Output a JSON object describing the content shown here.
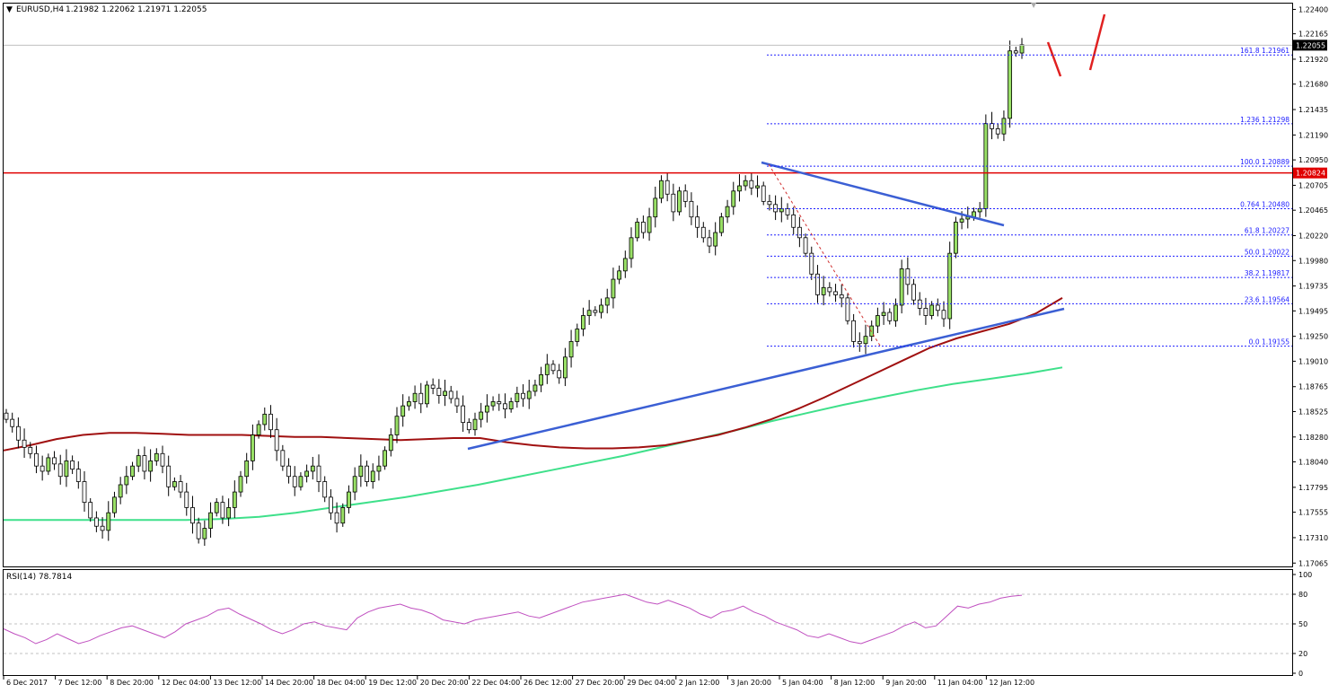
{
  "header": {
    "symbol": "EURUSD,H4",
    "ohlc": "1.21982 1.22062 1.21971 1.22055"
  },
  "rsi_header": {
    "label": "RSI(14) 78.7814"
  },
  "colors": {
    "up_candle": "#99e066",
    "down_candle": "#ffffff",
    "wick": "#000000",
    "resistance": "#e00000",
    "trendline": "#3b5fd4",
    "sma_red": "#a01010",
    "sma_green": "#3ee08a",
    "fib": "#2020ff",
    "rsi": "#c050c0",
    "arrow": "#e02020"
  },
  "chart_data": [
    {
      "type": "line",
      "name": "price",
      "symbol": "EURUSD",
      "timeframe": "H4",
      "y_ticks": [
        "1.22400",
        "1.22165",
        "1.21920",
        "1.21680",
        "1.21435",
        "1.21190",
        "1.20950",
        "1.20705",
        "1.20465",
        "1.20220",
        "1.19980",
        "1.19735",
        "1.19495",
        "1.19250",
        "1.19010",
        "1.18765",
        "1.18525",
        "1.18280",
        "1.18040",
        "1.17795",
        "1.17555",
        "1.17310",
        "1.17065"
      ],
      "ylim": [
        1.1705,
        1.2243
      ],
      "x_ticks": [
        "6 Dec 2017",
        "7 Dec 12:00",
        "8 Dec 20:00",
        "12 Dec 04:00",
        "13 Dec 12:00",
        "14 Dec 20:00",
        "18 Dec 04:00",
        "19 Dec 12:00",
        "20 Dec 20:00",
        "22 Dec 04:00",
        "26 Dec 12:00",
        "27 Dec 20:00",
        "29 Dec 04:00",
        "2 Jan 12:00",
        "3 Jan 20:00",
        "5 Jan 04:00",
        "8 Jan 12:00",
        "9 Jan 20:00",
        "11 Jan 04:00",
        "12 Jan 12:00"
      ],
      "close": [
        1.1845,
        1.1838,
        1.1825,
        1.1818,
        1.1812,
        1.18,
        1.1795,
        1.1808,
        1.1802,
        1.179,
        1.1805,
        1.1797,
        1.1785,
        1.1765,
        1.175,
        1.1742,
        1.1738,
        1.1755,
        1.177,
        1.1782,
        1.179,
        1.18,
        1.181,
        1.1795,
        1.1805,
        1.1812,
        1.18,
        1.178,
        1.1785,
        1.1775,
        1.176,
        1.1745,
        1.173,
        1.174,
        1.1755,
        1.1765,
        1.175,
        1.176,
        1.1775,
        1.179,
        1.1805,
        1.183,
        1.184,
        1.185,
        1.1835,
        1.1815,
        1.18,
        1.179,
        1.178,
        1.179,
        1.1795,
        1.18,
        1.1785,
        1.177,
        1.1755,
        1.1745,
        1.176,
        1.1775,
        1.179,
        1.18,
        1.1785,
        1.1795,
        1.18,
        1.1815,
        1.183,
        1.1848,
        1.1858,
        1.1862,
        1.187,
        1.186,
        1.1878,
        1.1875,
        1.1868,
        1.1872,
        1.1865,
        1.1858,
        1.1842,
        1.1835,
        1.1845,
        1.1852,
        1.1858,
        1.1862,
        1.186,
        1.1855,
        1.1862,
        1.187,
        1.1865,
        1.1872,
        1.1878,
        1.1888,
        1.1898,
        1.1892,
        1.1885,
        1.1905,
        1.192,
        1.1932,
        1.1945,
        1.195,
        1.1948,
        1.1955,
        1.1962,
        1.198,
        1.1988,
        1.2,
        1.202,
        1.2035,
        1.2025,
        1.204,
        1.2058,
        1.2075,
        1.2062,
        1.2045,
        1.2065,
        1.2055,
        1.204,
        1.203,
        1.202,
        1.2012,
        1.2025,
        1.204,
        1.205,
        1.2065,
        1.207,
        1.2075,
        1.2068,
        1.207,
        1.2055,
        1.2052,
        1.2045,
        1.2048,
        1.2042,
        1.203,
        1.202,
        1.2005,
        1.1985,
        1.1965,
        1.1972,
        1.1968,
        1.1965,
        1.1962,
        1.194,
        1.192,
        1.1918,
        1.1925,
        1.1935,
        1.1945,
        1.1948,
        1.194,
        1.1955,
        1.199,
        1.1975,
        1.196,
        1.1952,
        1.1945,
        1.1955,
        1.195,
        1.1942,
        1.2005,
        1.2035,
        1.2038,
        1.204,
        1.2045,
        1.2048,
        1.213,
        1.2125,
        1.212,
        1.2135,
        1.22,
        1.2198,
        1.2206
      ],
      "sma_red": [
        1.1815,
        1.182,
        1.1826,
        1.183,
        1.1832,
        1.1832,
        1.1831,
        1.183,
        1.183,
        1.183,
        1.1829,
        1.1828,
        1.1828,
        1.1827,
        1.1826,
        1.1825,
        1.1826,
        1.1827,
        1.1827,
        1.1823,
        1.182,
        1.1818,
        1.1817,
        1.1817,
        1.1818,
        1.182,
        1.1825,
        1.183,
        1.1837,
        1.1845,
        1.1855,
        1.1866,
        1.1878,
        1.189,
        1.1902,
        1.1914,
        1.1923,
        1.193,
        1.1937,
        1.1947,
        1.1962
      ],
      "sma_green": [
        1.1748,
        1.1748,
        1.1748,
        1.1748,
        1.1748,
        1.1748,
        1.1749,
        1.1751,
        1.1755,
        1.176,
        1.1765,
        1.177,
        1.1776,
        1.1782,
        1.1789,
        1.1796,
        1.1803,
        1.181,
        1.1818,
        1.1826,
        1.1834,
        1.1843,
        1.1851,
        1.1859,
        1.1866,
        1.1873,
        1.1879,
        1.1884,
        1.1889,
        1.1895
      ],
      "resistance": 1.20824,
      "resistance_label": "1.20824",
      "current_price_label": "1.22055",
      "fib_levels": [
        {
          "label": "161.8 1.21961",
          "value": 1.21961
        },
        {
          "label": "1.236 1.21298",
          "value": 1.21298
        },
        {
          "label": "100.0 1.20889",
          "value": 1.20889
        },
        {
          "label": "0.764 1.20480",
          "value": 1.2048
        },
        {
          "label": "61.8 1.20227",
          "value": 1.20227
        },
        {
          "label": "50.0 1.20022",
          "value": 1.20022
        },
        {
          "label": "38.2 1.19817",
          "value": 1.19817
        },
        {
          "label": "23.6 1.19564",
          "value": 1.19564
        },
        {
          "label": "0.0 1.19155",
          "value": 1.19155
        }
      ]
    },
    {
      "type": "line",
      "name": "RSI(14)",
      "last_value": 78.7814,
      "ylim": [
        0,
        100
      ],
      "y_ticks": [
        "100",
        "80",
        "50",
        "20",
        "0"
      ],
      "levels": [
        80,
        50,
        20
      ],
      "values": [
        45,
        40,
        36,
        30,
        34,
        40,
        35,
        30,
        33,
        38,
        42,
        46,
        48,
        44,
        40,
        36,
        42,
        50,
        54,
        58,
        64,
        66,
        60,
        55,
        50,
        44,
        40,
        44,
        50,
        52,
        48,
        46,
        44,
        56,
        62,
        66,
        68,
        70,
        66,
        64,
        60,
        54,
        52,
        50,
        54,
        56,
        58,
        60,
        62,
        58,
        56,
        60,
        64,
        68,
        72,
        74,
        76,
        78,
        80,
        76,
        72,
        70,
        74,
        70,
        66,
        60,
        56,
        62,
        64,
        68,
        62,
        58,
        52,
        48,
        44,
        38,
        36,
        40,
        36,
        32,
        30,
        34,
        38,
        42,
        48,
        52,
        46,
        48,
        58,
        68,
        66,
        70,
        72,
        76,
        78,
        79
      ]
    }
  ]
}
